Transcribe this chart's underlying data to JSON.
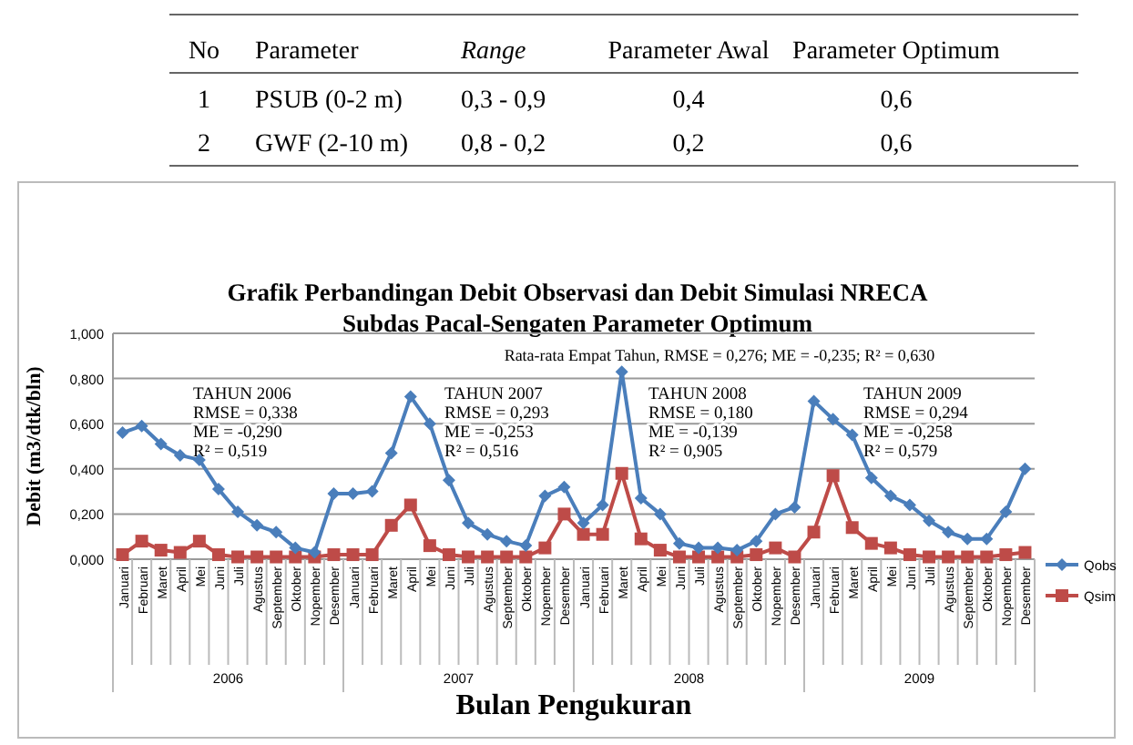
{
  "chart_data": [
    {
      "type": "other",
      "annotations": [
        "No",
        "Parameter",
        "Range",
        "Parameter Awal",
        "Parameter Optimum",
        "1",
        "PSUB (0-2 m)",
        "0,3 - 0,9",
        "0,4",
        "0,6",
        "2",
        "GWF (2-10 m)",
        "0,8 - 0,2",
        "0,2",
        "0,6"
      ]
    },
    {
      "type": "line",
      "title": "Grafik Perbandingan Debit Observasi dan Debit Simulasi NRECA",
      "subtitle": "Subdas Pacal-Sengaten Parameter Optimum",
      "xlabel": "Bulan Pengukuran",
      "ylabel": "Debit (m3/dtk/bln)",
      "categories": [
        "Januari",
        "Februari",
        "Maret",
        "April",
        "Mei",
        "Juni",
        "Juli",
        "Agustus",
        "September",
        "Oktober",
        "Nopember",
        "Desember",
        "Januari",
        "Februari",
        "Maret",
        "April",
        "Mei",
        "Juni",
        "Juli",
        "Agustus",
        "September",
        "Oktober",
        "Nopember",
        "Desember",
        "Januari",
        "Februari",
        "Maret",
        "April",
        "Mei",
        "Juni",
        "Juli",
        "Agustus",
        "September",
        "Oktober",
        "Nopember",
        "Desember",
        "Januari",
        "Februari",
        "Maret",
        "April",
        "Mei",
        "Juni",
        "Juli",
        "Agustus",
        "September",
        "Oktober",
        "Nopember",
        "Desember"
      ],
      "series": [
        {
          "name": "Qobs",
          "color": "#4a7ebb",
          "marker": "diamond",
          "values": [
            0.56,
            0.59,
            0.51,
            0.46,
            0.44,
            0.31,
            0.21,
            0.15,
            0.12,
            0.05,
            0.03,
            0.29,
            0.29,
            0.3,
            0.47,
            0.72,
            0.6,
            0.35,
            0.16,
            0.11,
            0.08,
            0.06,
            0.28,
            0.32,
            0.16,
            0.24,
            0.83,
            0.27,
            0.2,
            0.07,
            0.05,
            0.05,
            0.04,
            0.08,
            0.2,
            0.23,
            0.7,
            0.62,
            0.55,
            0.36,
            0.28,
            0.24,
            0.17,
            0.12,
            0.09,
            0.09,
            0.21,
            0.4
          ]
        },
        {
          "name": "Qsim",
          "color": "#be4b48",
          "marker": "square",
          "values": [
            0.02,
            0.08,
            0.04,
            0.03,
            0.08,
            0.02,
            0.01,
            0.01,
            0.01,
            0.01,
            0.01,
            0.02,
            0.02,
            0.02,
            0.15,
            0.24,
            0.06,
            0.02,
            0.01,
            0.01,
            0.01,
            0.01,
            0.05,
            0.2,
            0.11,
            0.11,
            0.38,
            0.09,
            0.04,
            0.01,
            0.01,
            0.01,
            0.01,
            0.02,
            0.05,
            0.01,
            0.12,
            0.37,
            0.14,
            0.07,
            0.05,
            0.02,
            0.01,
            0.01,
            0.01,
            0.01,
            0.02,
            0.03
          ]
        }
      ],
      "ylim": [
        0,
        1
      ],
      "yticks": [
        {
          "value": 0,
          "label": "0,000"
        },
        {
          "value": 0.2,
          "label": "0,200"
        },
        {
          "value": 0.4,
          "label": "0,400"
        },
        {
          "value": 0.6,
          "label": "0,600"
        },
        {
          "value": 0.8,
          "label": "0,800"
        },
        {
          "value": 1,
          "label": "1,000"
        }
      ],
      "grid": "y",
      "legend": "right",
      "line_style": "solid",
      "annotations": [
        "2006",
        "2007",
        "2008",
        "2009",
        "Rata-rata Empat Tahun, RMSE = 0,276; ME = -0,235; R² = 0,630",
        "TAHUN 2006\nRMSE = 0,338\nME = -0,290\nR² = 0,519",
        "TAHUN 2007\nRMSE = 0,293\nME = -0,253\nR² = 0,516",
        "TAHUN 2008\nRMSE = 0,180\nME = -0,139\nR² = 0,905",
        "TAHUN 2009\nRMSE = 0,294\nME = -0,258\nR² = 0,579"
      ]
    }
  ]
}
